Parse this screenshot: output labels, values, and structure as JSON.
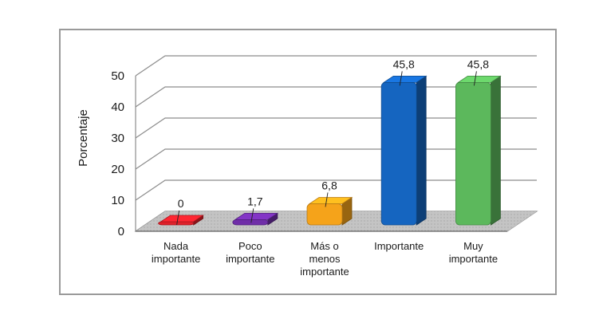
{
  "chart_data": {
    "type": "bar",
    "title": "",
    "xlabel": "",
    "ylabel": "Porcentaje",
    "ylim": [
      0,
      50
    ],
    "yticks": [
      0,
      10,
      20,
      30,
      40,
      50
    ],
    "grid": true,
    "three_d": true,
    "categories": [
      [
        "Nada",
        "importante"
      ],
      [
        "Poco",
        "importante"
      ],
      [
        "Más o",
        "menos",
        "importante"
      ],
      [
        "Importante"
      ],
      [
        "Muy",
        "importante"
      ]
    ],
    "values": [
      0,
      1.7,
      6.8,
      45.8,
      45.8
    ],
    "value_labels": [
      "0",
      "1,7",
      "6,8",
      "45,8",
      "45,8"
    ],
    "colors": [
      "#e0202a",
      "#6f2da8",
      "#f5a31a",
      "#1565c0",
      "#5cb85c"
    ]
  }
}
